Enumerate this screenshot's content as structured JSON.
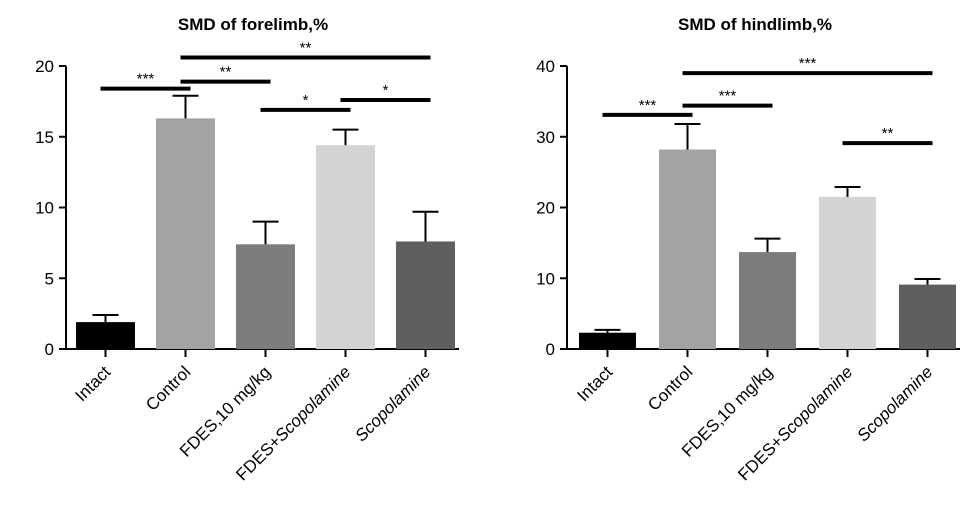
{
  "chart_data": [
    {
      "type": "bar",
      "title": "SMD of forelimb,%",
      "xlabel": "",
      "ylabel": "",
      "ylim": [
        0,
        20
      ],
      "yticks": [
        "0",
        "5",
        "10",
        "15",
        "20"
      ],
      "categories": [
        {
          "parts": [
            {
              "text": "Intact",
              "italic": false
            }
          ]
        },
        {
          "parts": [
            {
              "text": "Control",
              "italic": false
            }
          ]
        },
        {
          "parts": [
            {
              "text": "FDES,10 mg/kg",
              "italic": false
            }
          ]
        },
        {
          "parts": [
            {
              "text": "FDES+",
              "italic": false
            },
            {
              "text": "Scopolamine",
              "italic": true
            }
          ]
        },
        {
          "parts": [
            {
              "text": "Scopolamine",
              "italic": true
            }
          ]
        }
      ],
      "values": [
        1.9,
        16.3,
        7.4,
        14.4,
        7.6
      ],
      "errors": [
        0.5,
        1.6,
        1.6,
        1.1,
        2.1
      ],
      "colors": [
        "#000000",
        "#a3a3a3",
        "#7c7c7c",
        "#d3d3d3",
        "#5f5f5f"
      ],
      "grid": false,
      "significance": [
        {
          "from": 0,
          "to": 1,
          "label": "***",
          "y": 18.4
        },
        {
          "from": 1,
          "to": 2,
          "label": "**",
          "y": 18.9
        },
        {
          "from": 1,
          "to": 4,
          "label": "**",
          "y": 20.6
        },
        {
          "from": 2,
          "to": 3,
          "label": "*",
          "y": 16.9
        },
        {
          "from": 3,
          "to": 4,
          "label": "*",
          "y": 17.6
        }
      ]
    },
    {
      "type": "bar",
      "title": "SMD of hindlimb,%",
      "xlabel": "",
      "ylabel": "",
      "ylim": [
        0,
        40
      ],
      "yticks": [
        "0",
        "10",
        "20",
        "30",
        "40"
      ],
      "categories": [
        {
          "parts": [
            {
              "text": "Intact",
              "italic": false
            }
          ]
        },
        {
          "parts": [
            {
              "text": "Control",
              "italic": false
            }
          ]
        },
        {
          "parts": [
            {
              "text": "FDES,10 mg/kg",
              "italic": false
            }
          ]
        },
        {
          "parts": [
            {
              "text": "FDES+",
              "italic": false
            },
            {
              "text": "Scopolamine",
              "italic": true
            }
          ]
        },
        {
          "parts": [
            {
              "text": "Scopolamine",
              "italic": true
            }
          ]
        }
      ],
      "values": [
        2.3,
        28.2,
        13.7,
        21.5,
        9.1
      ],
      "errors": [
        0.4,
        3.6,
        1.9,
        1.4,
        0.8
      ],
      "colors": [
        "#000000",
        "#a3a3a3",
        "#7c7c7c",
        "#d3d3d3",
        "#5f5f5f"
      ],
      "grid": false,
      "significance": [
        {
          "from": 0,
          "to": 1,
          "label": "***",
          "y": 33.1
        },
        {
          "from": 1,
          "to": 2,
          "label": "***",
          "y": 34.4
        },
        {
          "from": 1,
          "to": 4,
          "label": "***",
          "y": 39.0
        },
        {
          "from": 3,
          "to": 4,
          "label": "**",
          "y": 29.1
        }
      ]
    }
  ]
}
